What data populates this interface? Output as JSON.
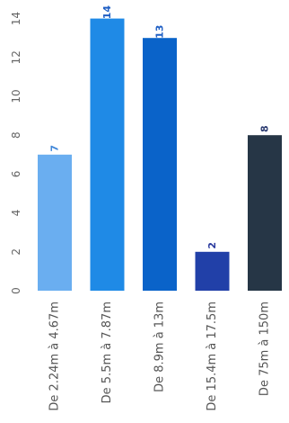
{
  "chart_data": {
    "type": "bar",
    "orientation": "vertical",
    "rotated_view": true,
    "title": "",
    "xlabel": "",
    "ylabel": "",
    "categories": [
      "De 2.24m à 4.67m",
      "De 5.5m à 7.87m",
      "De 8.9m à 13m",
      "De 15.4m à 17.5m",
      "De 75m à 150m"
    ],
    "values": [
      7,
      14,
      13,
      2,
      8
    ],
    "data_labels": [
      "7",
      "14",
      "13",
      "2",
      "8"
    ],
    "ylim": [
      0,
      14
    ],
    "yticks": [
      "0",
      "2",
      "4",
      "6",
      "8",
      "10",
      "12",
      "14"
    ],
    "grid": false,
    "colors": [
      "#6aaef0",
      "#1f8ae6",
      "#0a63c9",
      "#2140a8",
      "#263646"
    ],
    "label_colors": [
      "#3f86d8",
      "#1f5fc4",
      "#1f5fc4",
      "#2a3a9e",
      "#2a3a70"
    ]
  }
}
